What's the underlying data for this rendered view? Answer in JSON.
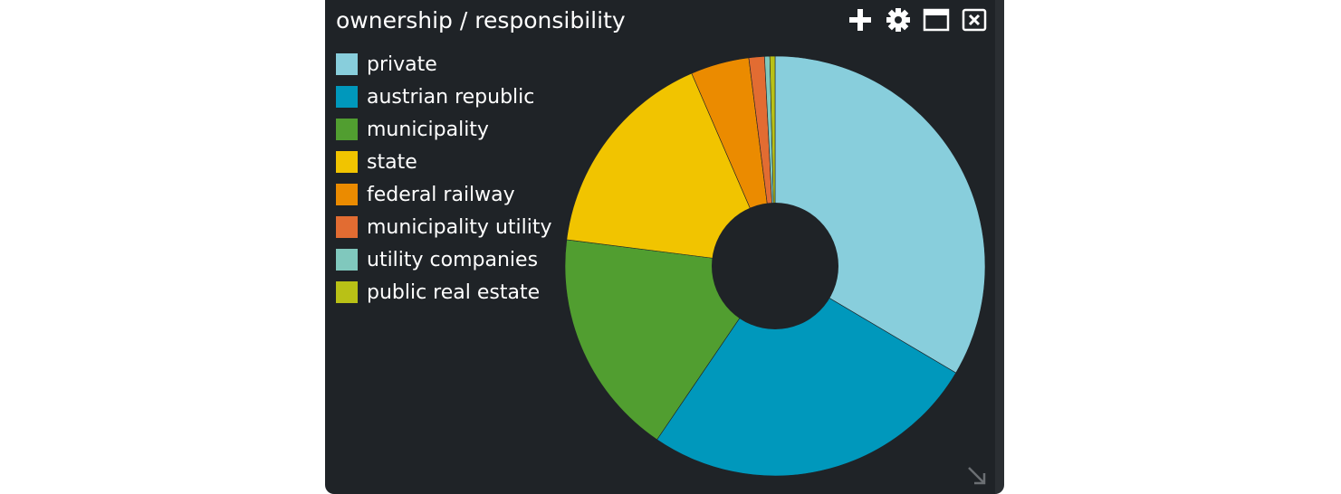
{
  "widget": {
    "title": "ownership / responsibility",
    "icons": [
      "plus-icon",
      "gear-icon",
      "maximize-icon",
      "close-icon",
      "resize-icon"
    ]
  },
  "colors": {
    "background": "#1f2327",
    "text": "#ffffff"
  },
  "chart_data": {
    "type": "pie",
    "variant": "donut",
    "title": "ownership / responsibility",
    "legend_position": "top-left",
    "series": [
      {
        "name": "private",
        "value": 33.5,
        "color": "#88cedc"
      },
      {
        "name": "austrian republic",
        "value": 26.0,
        "color": "#0098bc"
      },
      {
        "name": "municipality",
        "value": 17.5,
        "color": "#519e30"
      },
      {
        "name": "state",
        "value": 16.5,
        "color": "#f1c400"
      },
      {
        "name": "federal railway",
        "value": 4.5,
        "color": "#eb8b00"
      },
      {
        "name": "municipality utility",
        "value": 1.2,
        "color": "#e26c32"
      },
      {
        "name": "utility companies",
        "value": 0.4,
        "color": "#80c8bd"
      },
      {
        "name": "public real estate",
        "value": 0.4,
        "color": "#b9c116"
      }
    ]
  }
}
